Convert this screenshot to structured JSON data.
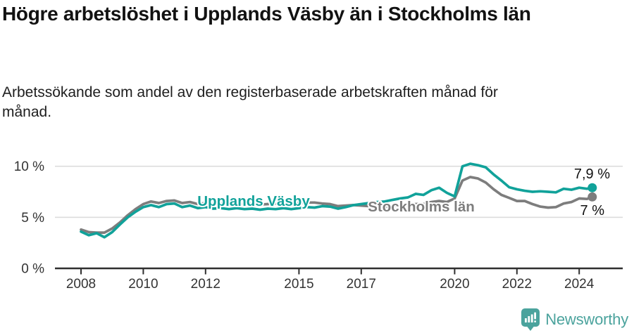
{
  "header": {
    "title": "Högre arbetslöshet i Upplands Väsby än i Stockholms län",
    "subtitle": "Arbetssökande som andel av den registerbaserade arbetskraften månad för månad."
  },
  "footer": {
    "brand": "Newsworthy",
    "logo_icon": "bar-chart-speech-bubble-icon"
  },
  "colors": {
    "accent_teal": "#11a29a",
    "line_gray": "#7d7d7d",
    "logo_teal": "#4ba39d",
    "grid": "#dcdcdc",
    "axis": "#2f2f2f",
    "axis_text": "#333333",
    "value_label_text": "#111111"
  },
  "chart_data": {
    "type": "line",
    "title": "Högre arbetslöshet i Upplands Väsby än i Stockholms län",
    "subtitle": "Arbetssökande som andel av den registerbaserade arbetskraften månad för månad.",
    "unit": "%",
    "grid": "horizontal-only",
    "legend_position": "inline-labels-on-lines",
    "xlim": [
      2007.15,
      2025.4
    ],
    "ylim": [
      0,
      11
    ],
    "x_ticks": [
      2008,
      2010,
      2012,
      2015,
      2017,
      2020,
      2022,
      2024
    ],
    "y_ticks": [
      {
        "value": 0,
        "label": "0 %"
      },
      {
        "value": 5,
        "label": "5 %"
      },
      {
        "value": 10,
        "label": "10 %"
      }
    ],
    "x": [
      2008,
      2008.25,
      2008.5,
      2008.75,
      2009,
      2009.25,
      2009.5,
      2009.75,
      2010,
      2010.25,
      2010.5,
      2010.75,
      2011,
      2011.25,
      2011.5,
      2011.75,
      2012,
      2012.25,
      2012.5,
      2012.75,
      2013,
      2013.25,
      2013.5,
      2013.75,
      2014,
      2014.25,
      2014.5,
      2014.75,
      2015,
      2015.25,
      2015.5,
      2015.75,
      2016,
      2016.25,
      2016.5,
      2016.75,
      2017,
      2017.25,
      2017.5,
      2017.75,
      2018,
      2018.25,
      2018.5,
      2018.75,
      2019,
      2019.25,
      2019.5,
      2019.75,
      2020,
      2020.25,
      2020.5,
      2020.75,
      2021,
      2021.25,
      2021.5,
      2021.75,
      2022,
      2022.25,
      2022.5,
      2022.75,
      2023,
      2023.25,
      2023.5,
      2023.75,
      2024,
      2024.25,
      2024.42
    ],
    "series": [
      {
        "name": "Upplands Väsby",
        "color": "#11a29a",
        "end_value": 7.9,
        "end_label": "7,9 %",
        "values": [
          3.6,
          3.25,
          3.45,
          3.05,
          3.55,
          4.3,
          5.0,
          5.55,
          6.0,
          6.2,
          6.0,
          6.3,
          6.35,
          6.0,
          6.15,
          5.9,
          6.0,
          5.85,
          5.9,
          5.8,
          5.9,
          5.8,
          5.85,
          5.75,
          5.85,
          5.8,
          5.9,
          5.8,
          5.9,
          6.0,
          5.95,
          6.1,
          6.05,
          5.85,
          6.0,
          6.2,
          6.3,
          6.4,
          6.5,
          6.55,
          6.7,
          6.85,
          6.95,
          7.3,
          7.2,
          7.65,
          7.9,
          7.4,
          7.05,
          10.0,
          10.25,
          10.1,
          9.9,
          9.2,
          8.6,
          7.95,
          7.75,
          7.6,
          7.5,
          7.55,
          7.5,
          7.45,
          7.8,
          7.7,
          7.9,
          7.8,
          7.9
        ]
      },
      {
        "name": "Stockholms län",
        "color": "#7d7d7d",
        "end_value": 7.0,
        "end_label": "7 %",
        "values": [
          3.8,
          3.55,
          3.5,
          3.5,
          3.9,
          4.5,
          5.2,
          5.8,
          6.3,
          6.55,
          6.4,
          6.6,
          6.65,
          6.4,
          6.5,
          6.3,
          6.4,
          6.3,
          6.35,
          6.25,
          6.35,
          6.3,
          6.35,
          6.25,
          6.3,
          6.35,
          6.3,
          6.35,
          6.4,
          6.45,
          6.45,
          6.35,
          6.3,
          6.1,
          6.15,
          6.2,
          6.15,
          6.1,
          6.1,
          6.05,
          6.1,
          6.15,
          6.2,
          6.3,
          6.3,
          6.5,
          6.6,
          6.5,
          6.85,
          8.6,
          8.95,
          8.8,
          8.4,
          7.75,
          7.2,
          6.9,
          6.6,
          6.6,
          6.3,
          6.05,
          5.95,
          6.0,
          6.35,
          6.5,
          6.85,
          6.8,
          7.0
        ]
      }
    ]
  }
}
